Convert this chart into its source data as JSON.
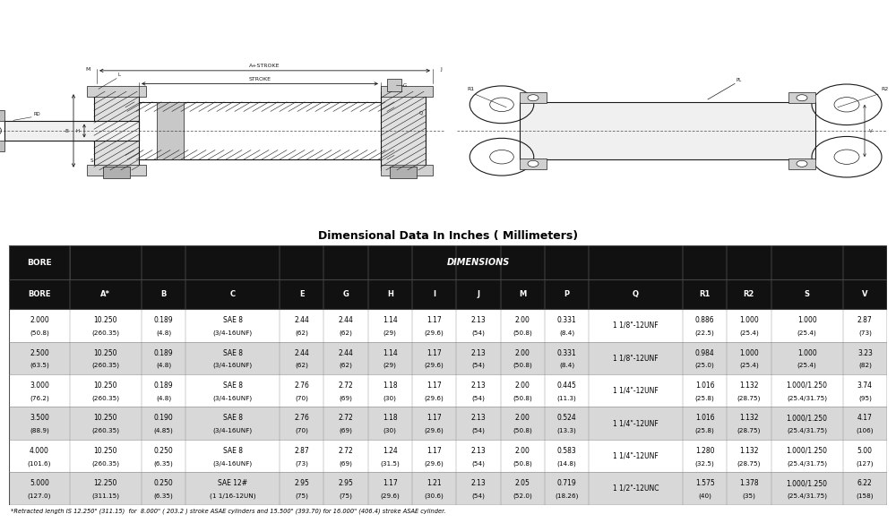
{
  "title": "Dimensional Data In Inches ( Millimeters)",
  "footnote": "*Retracted length IS 12.250\" (311.15)  for  8.000\" ( 203.2 ) stroke ASAE cylinders and 15.500\" (393.70) for 16.000\" (406.4) stroke ASAE cylinder.",
  "header_bg": "#111111",
  "header_fg": "#ffffff",
  "row_colors": [
    "#ffffff",
    "#d8d8d8"
  ],
  "col_widths": [
    5.5,
    6.5,
    4.0,
    8.5,
    4.0,
    4.0,
    4.0,
    4.0,
    4.0,
    4.0,
    4.0,
    8.5,
    4.0,
    4.0,
    6.5,
    4.0
  ],
  "columns": [
    "BORE",
    "A*",
    "B",
    "C",
    "E",
    "G",
    "H",
    "I",
    "J",
    "M",
    "P",
    "Q",
    "R1",
    "R2",
    "S",
    "V"
  ],
  "rows": [
    {
      "line1": [
        "2.000",
        "10.250",
        "0.189",
        "SAE 8",
        "2.44",
        "2.44",
        "1.14",
        "1.17",
        "2.13",
        "2.00",
        "0.331",
        "1 1/8\"-12UNF",
        "0.886",
        "1.000",
        "1.000",
        "2.87"
      ],
      "line2": [
        "(50.8)",
        "(260.35)",
        "(4.8)",
        "(3/4-16UNF)",
        "(62)",
        "(62)",
        "(29)",
        "(29.6)",
        "(54)",
        "(50.8)",
        "(8.4)",
        "",
        "(22.5)",
        "(25.4)",
        "(25.4)",
        "(73)"
      ]
    },
    {
      "line1": [
        "2.500",
        "10.250",
        "0.189",
        "SAE 8",
        "2.44",
        "2.44",
        "1.14",
        "1.17",
        "2.13",
        "2.00",
        "0.331",
        "1 1/8\"-12UNF",
        "0.984",
        "1.000",
        "1.000",
        "3.23"
      ],
      "line2": [
        "(63.5)",
        "(260.35)",
        "(4.8)",
        "(3/4-16UNF)",
        "(62)",
        "(62)",
        "(29)",
        "(29.6)",
        "(54)",
        "(50.8)",
        "(8.4)",
        "",
        "(25.0)",
        "(25.4)",
        "(25.4)",
        "(82)"
      ]
    },
    {
      "line1": [
        "3.000",
        "10.250",
        "0.189",
        "SAE 8",
        "2.76",
        "2.72",
        "1.18",
        "1.17",
        "2.13",
        "2.00",
        "0.445",
        "1 1/4\"-12UNF",
        "1.016",
        "1.132",
        "1.000/1.250",
        "3.74"
      ],
      "line2": [
        "(76.2)",
        "(260.35)",
        "(4.8)",
        "(3/4-16UNF)",
        "(70)",
        "(69)",
        "(30)",
        "(29.6)",
        "(54)",
        "(50.8)",
        "(11.3)",
        "",
        "(25.8)",
        "(28.75)",
        "(25.4/31.75)",
        "(95)"
      ]
    },
    {
      "line1": [
        "3.500",
        "10.250",
        "0.190",
        "SAE 8",
        "2.76",
        "2.72",
        "1.18",
        "1.17",
        "2.13",
        "2.00",
        "0.524",
        "1 1/4\"-12UNF",
        "1.016",
        "1.132",
        "1.000/1.250",
        "4.17"
      ],
      "line2": [
        "(88.9)",
        "(260.35)",
        "(4.85)",
        "(3/4-16UNF)",
        "(70)",
        "(69)",
        "(30)",
        "(29.6)",
        "(54)",
        "(50.8)",
        "(13.3)",
        "",
        "(25.8)",
        "(28.75)",
        "(25.4/31.75)",
        "(106)"
      ]
    },
    {
      "line1": [
        "4.000",
        "10.250",
        "0.250",
        "SAE 8",
        "2.87",
        "2.72",
        "1.24",
        "1.17",
        "2.13",
        "2.00",
        "0.583",
        "1 1/4\"-12UNF",
        "1.280",
        "1.132",
        "1.000/1.250",
        "5.00"
      ],
      "line2": [
        "(101.6)",
        "(260.35)",
        "(6.35)",
        "(3/4-16UNF)",
        "(73)",
        "(69)",
        "(31.5)",
        "(29.6)",
        "(54)",
        "(50.8)",
        "(14.8)",
        "",
        "(32.5)",
        "(28.75)",
        "(25.4/31.75)",
        "(127)"
      ]
    },
    {
      "line1": [
        "5.000",
        "12.250",
        "0.250",
        "SAE 12#",
        "2.95",
        "2.95",
        "1.17",
        "1.21",
        "2.13",
        "2.05",
        "0.719",
        "1 1/2\"-12UNC",
        "1.575",
        "1.378",
        "1.000/1.250",
        "6.22"
      ],
      "line2": [
        "(127.0)",
        "(311.15)",
        "(6.35)",
        "(1 1/16-12UN)",
        "(75)",
        "(75)",
        "(29.6)",
        "(30.6)",
        "(54)",
        "(52.0)",
        "(18.26)",
        "",
        "(40)",
        "(35)",
        "(25.4/31.75)",
        "(158)"
      ]
    }
  ]
}
